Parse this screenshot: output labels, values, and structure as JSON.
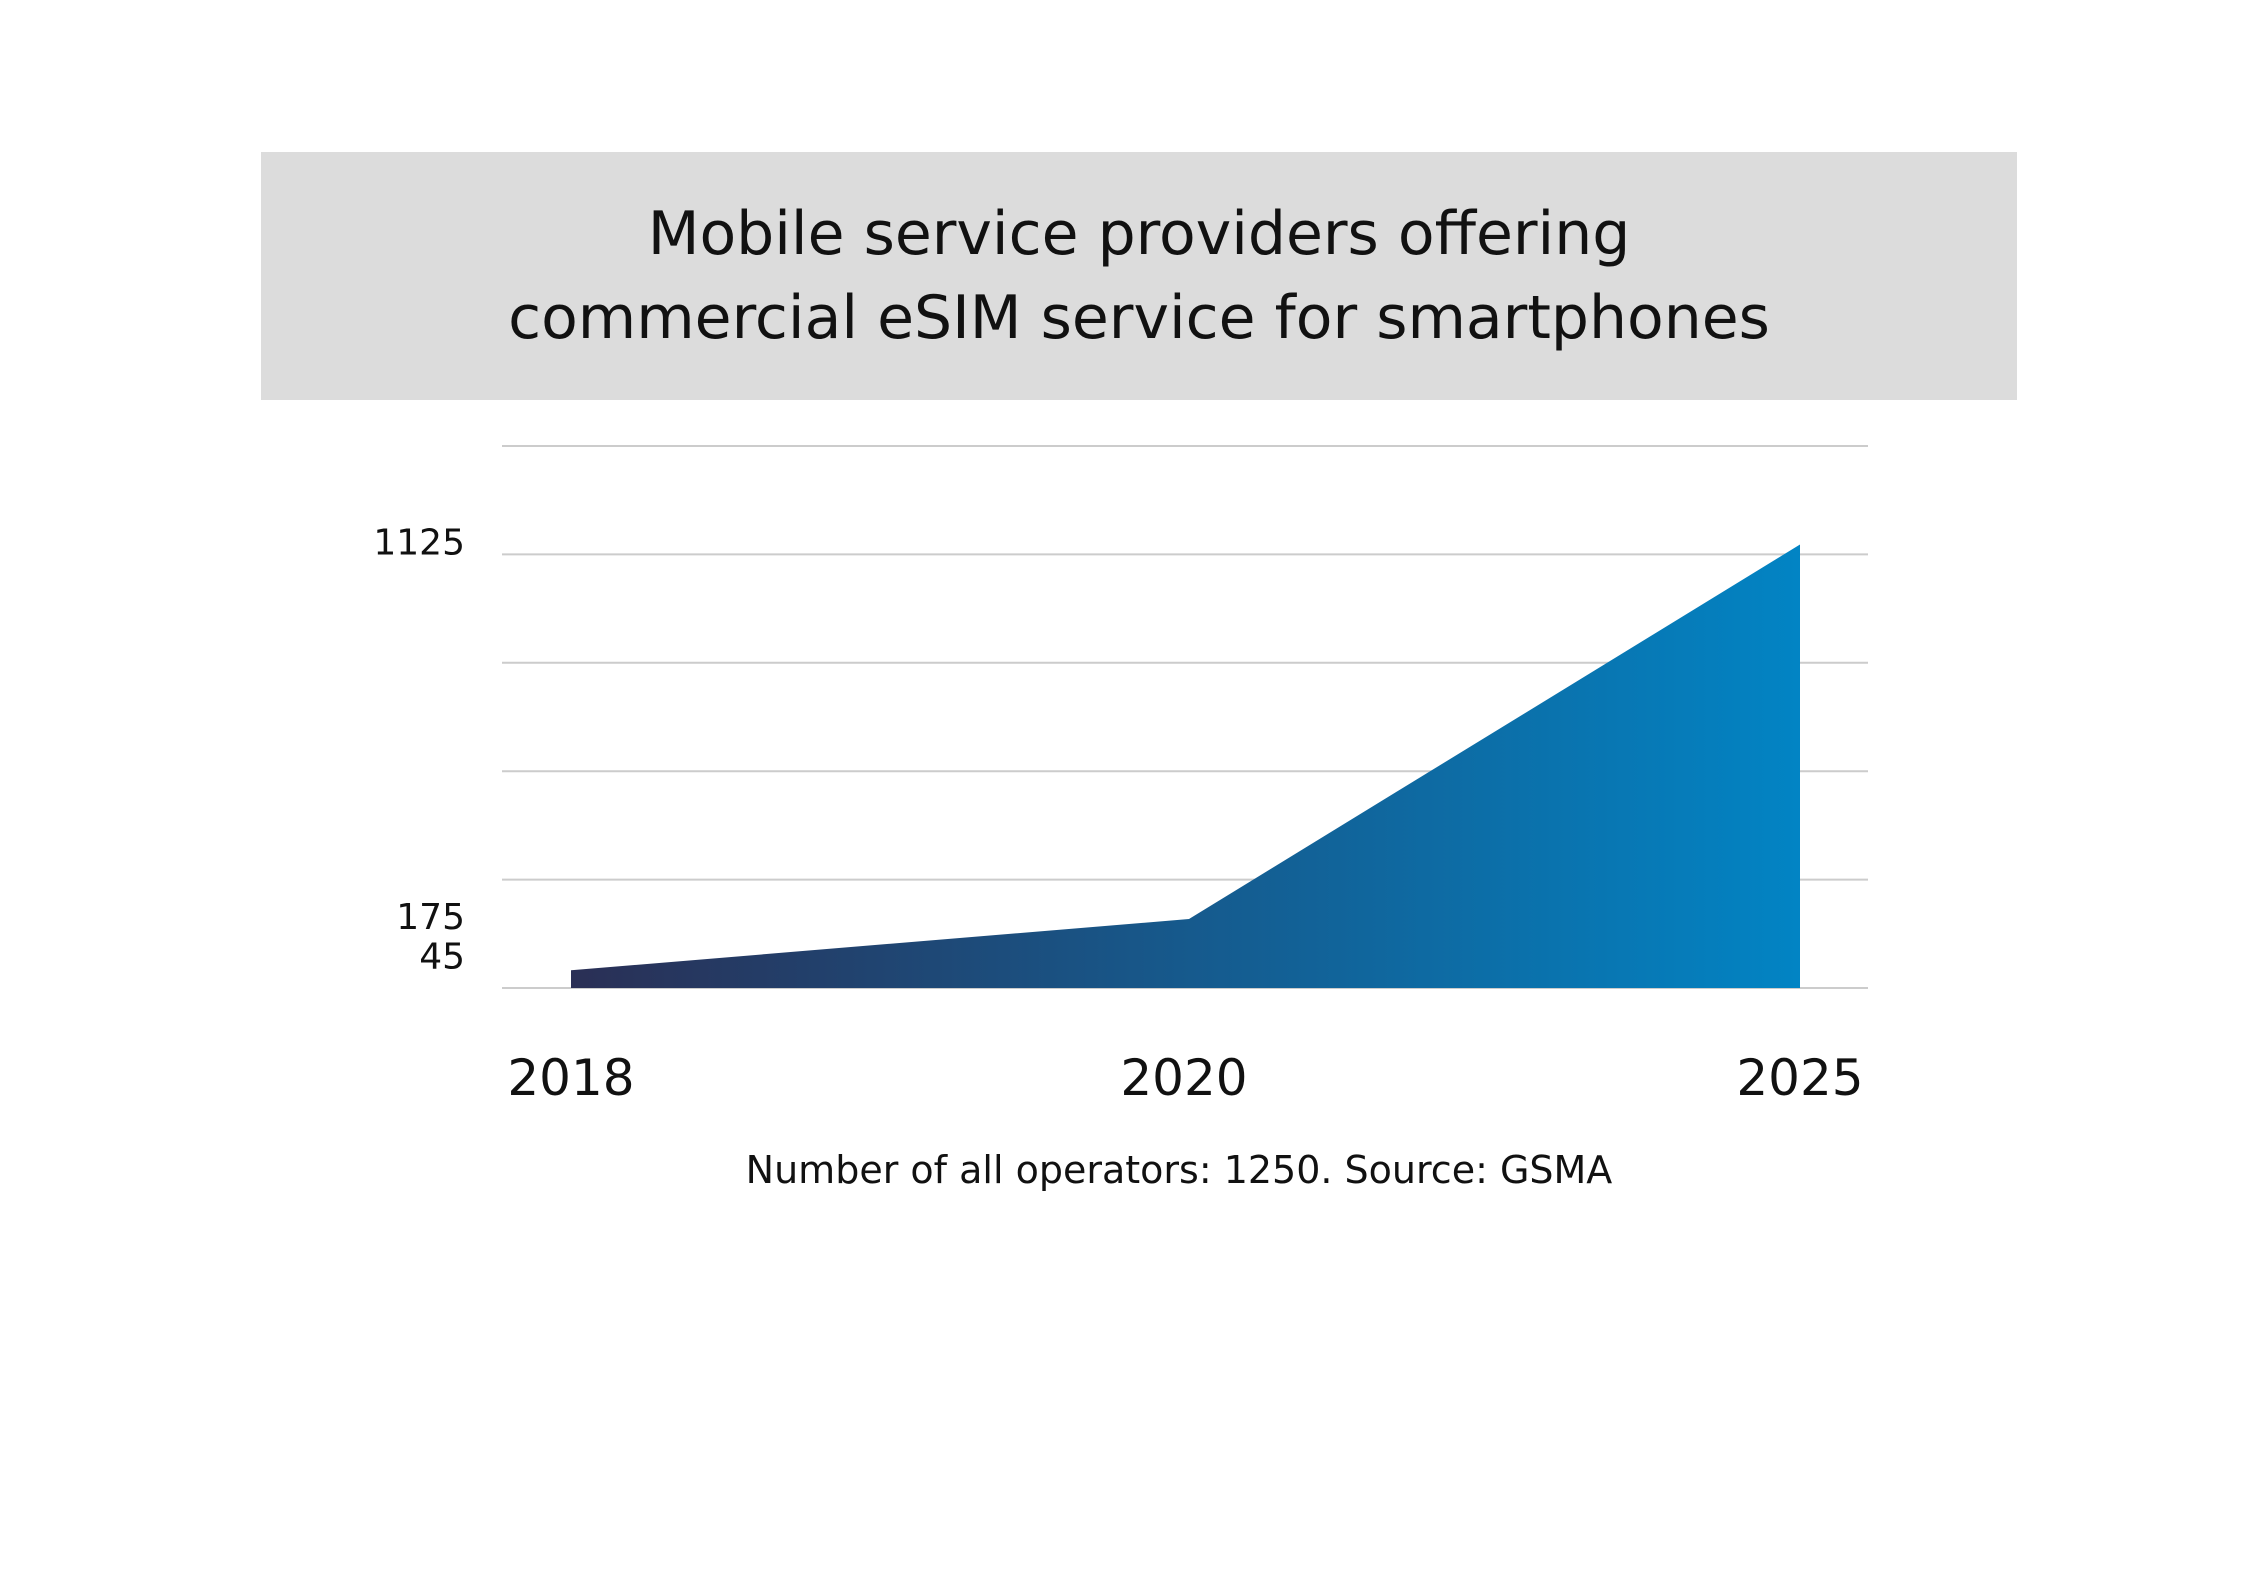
{
  "chart_data": {
    "type": "area",
    "title_lines": [
      "Mobile service providers offering",
      "commercial eSIM service for smartphones"
    ],
    "x": [
      "2018",
      "2020",
      "2025"
    ],
    "values": [
      45,
      175,
      1125
    ],
    "y_tick_labels": [
      "45",
      "175",
      "1125"
    ],
    "ylim": [
      0,
      1375
    ],
    "grid": true,
    "gridline_values": [
      0,
      275,
      550,
      825,
      1100,
      1375
    ],
    "fill_gradient": [
      "#2a2f55",
      "#0284c4"
    ],
    "note": "Number of all operators: 1250. Source: GSMA"
  }
}
